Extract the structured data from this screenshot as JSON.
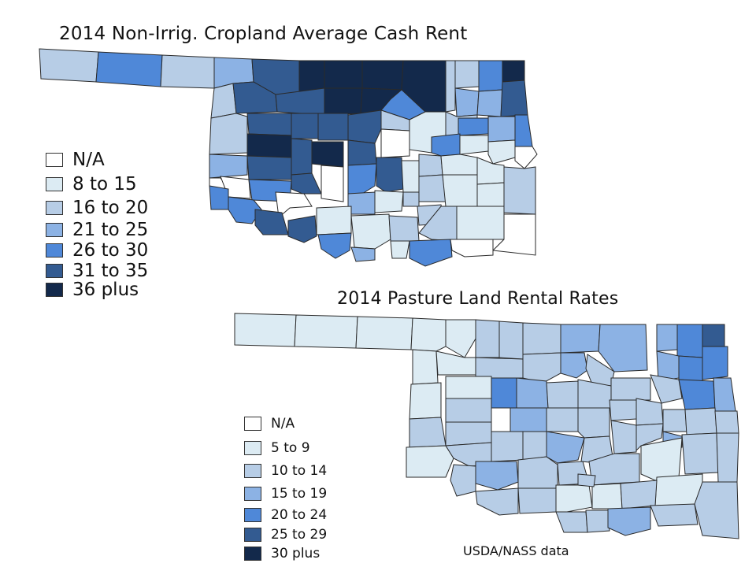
{
  "maps": [
    {
      "title": "2014 Non-Irrig. Cropland Average Cash Rent",
      "legend": [
        {
          "label": "N/A",
          "color": "#ffffff"
        },
        {
          "label": "8 to 15",
          "color": "#dcebf3"
        },
        {
          "label": "16 to 20",
          "color": "#b7cde6"
        },
        {
          "label": "21 to 25",
          "color": "#8cb2e4"
        },
        {
          "label": "26 to 30",
          "color": "#4f88d8"
        },
        {
          "label": "31 to 35",
          "color": "#335b91"
        },
        {
          "label": "36 plus",
          "color": "#13294b"
        }
      ]
    },
    {
      "title": "2014 Pasture Land Rental Rates",
      "legend": [
        {
          "label": "N/A",
          "color": "#ffffff"
        },
        {
          "label": "5 to 9",
          "color": "#dcebf3"
        },
        {
          "label": "10 to 14",
          "color": "#b7cde6"
        },
        {
          "label": "15 to 19",
          "color": "#8cb2e4"
        },
        {
          "label": "20 to 24",
          "color": "#4f88d8"
        },
        {
          "label": "25 to 29",
          "color": "#335b91"
        },
        {
          "label": "30 plus",
          "color": "#13294b"
        }
      ]
    }
  ],
  "source": "USDA/NASS data"
}
